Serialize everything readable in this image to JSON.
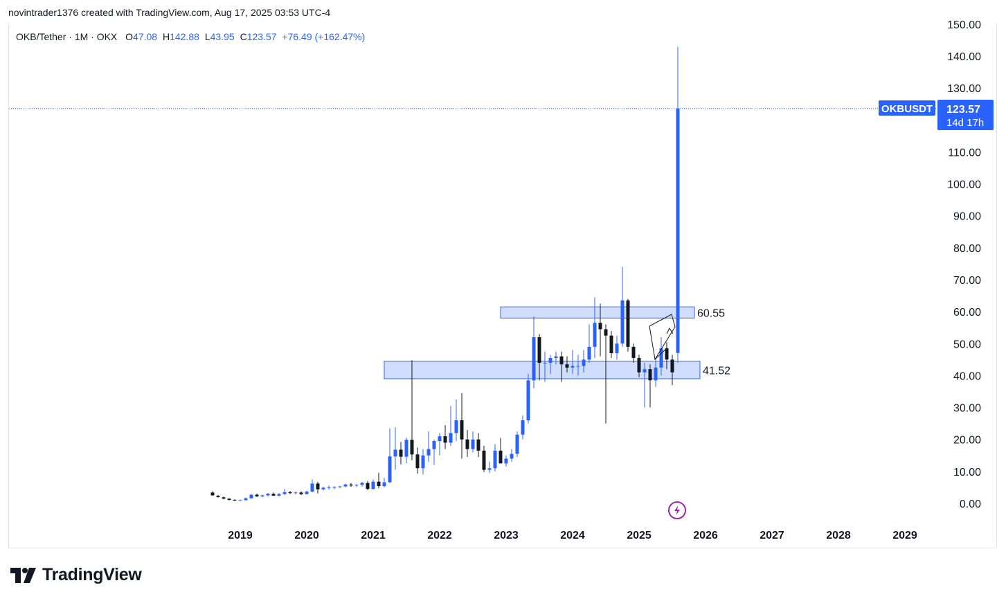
{
  "header": {
    "attribution": "novintrader1376 created with TradingView.com, Aug 17, 2025 03:53 UTC-4"
  },
  "legend": {
    "symbol": "OKB/Tether · 1M · OKX",
    "o_label": "O",
    "o_value": "47.08",
    "h_label": "H",
    "h_value": "142.88",
    "l_label": "L",
    "l_value": "43.95",
    "c_label": "C",
    "c_value": "123.57",
    "change": "+76.49 (+162.47%)"
  },
  "price_tag": {
    "symbol": "OKBUSDT",
    "price": "123.57",
    "countdown": "14d 17h"
  },
  "levels": {
    "upper": "60.55",
    "lower": "41.52"
  },
  "footer": {
    "brand": "TradingView"
  },
  "colors": {
    "up": "#2962ff",
    "down": "#131722",
    "zone_fill": "#c9d7fb",
    "zone_stroke": "#2962ff",
    "priceline": "#2962ff"
  },
  "chart_data": {
    "type": "candlestick",
    "interval": "1M",
    "y_axis": {
      "ticks": [
        0,
        10,
        20,
        30,
        40,
        50,
        60,
        70,
        80,
        90,
        100,
        110,
        120,
        130,
        140,
        150
      ],
      "tick_labels": [
        "0.00",
        "10.00",
        "20.00",
        "30.00",
        "40.00",
        "50.00",
        "60.00",
        "70.00",
        "80.00",
        "90.00",
        "100.00",
        "110.00",
        "120.00",
        "130.00",
        "140.00",
        "150.00"
      ],
      "range": [
        0,
        150
      ]
    },
    "x_axis": {
      "tick_labels": [
        "2019",
        "2020",
        "2021",
        "2022",
        "2023",
        "2024",
        "2025",
        "2026",
        "2027",
        "2028",
        "2029"
      ],
      "range": [
        "2018-06",
        "2029-12"
      ]
    },
    "zones": [
      {
        "label": "60.55",
        "low": 58.0,
        "high": 61.5,
        "start": "2023-01",
        "end": "2025-10"
      },
      {
        "label": "41.52",
        "low": 39.0,
        "high": 44.5,
        "start": "2021-04",
        "end": "2025-11"
      }
    ],
    "candles": [
      {
        "t": "2018-08",
        "o": 3.4,
        "h": 3.8,
        "l": 2.4,
        "c": 2.5
      },
      {
        "t": "2018-09",
        "o": 2.4,
        "h": 2.6,
        "l": 1.8,
        "c": 2.0
      },
      {
        "t": "2018-10",
        "o": 1.9,
        "h": 2.1,
        "l": 1.3,
        "c": 1.5
      },
      {
        "t": "2018-11",
        "o": 1.5,
        "h": 1.6,
        "l": 0.9,
        "c": 1.1
      },
      {
        "t": "2018-12",
        "o": 1.1,
        "h": 1.3,
        "l": 0.8,
        "c": 1.0
      },
      {
        "t": "2019-01",
        "o": 1.0,
        "h": 1.2,
        "l": 0.8,
        "c": 1.0
      },
      {
        "t": "2019-02",
        "o": 1.0,
        "h": 1.8,
        "l": 0.9,
        "c": 1.6
      },
      {
        "t": "2019-03",
        "o": 1.6,
        "h": 2.9,
        "l": 1.4,
        "c": 2.7
      },
      {
        "t": "2019-04",
        "o": 2.7,
        "h": 3.1,
        "l": 2.0,
        "c": 2.2
      },
      {
        "t": "2019-05",
        "o": 2.2,
        "h": 2.8,
        "l": 1.9,
        "c": 2.5
      },
      {
        "t": "2019-06",
        "o": 2.5,
        "h": 3.3,
        "l": 2.2,
        "c": 3.0
      },
      {
        "t": "2019-07",
        "o": 3.0,
        "h": 3.4,
        "l": 2.3,
        "c": 2.4
      },
      {
        "t": "2019-08",
        "o": 2.4,
        "h": 3.2,
        "l": 2.2,
        "c": 2.9
      },
      {
        "t": "2019-09",
        "o": 2.9,
        "h": 4.5,
        "l": 2.7,
        "c": 3.5
      },
      {
        "t": "2019-10",
        "o": 3.5,
        "h": 3.9,
        "l": 2.9,
        "c": 3.2
      },
      {
        "t": "2019-11",
        "o": 3.2,
        "h": 3.7,
        "l": 2.8,
        "c": 3.4
      },
      {
        "t": "2019-12",
        "o": 3.4,
        "h": 3.8,
        "l": 2.6,
        "c": 2.9
      },
      {
        "t": "2020-01",
        "o": 2.9,
        "h": 3.9,
        "l": 2.8,
        "c": 3.7
      },
      {
        "t": "2020-02",
        "o": 3.7,
        "h": 7.5,
        "l": 3.5,
        "c": 6.2
      },
      {
        "t": "2020-03",
        "o": 6.2,
        "h": 6.8,
        "l": 3.1,
        "c": 4.4
      },
      {
        "t": "2020-04",
        "o": 4.4,
        "h": 5.2,
        "l": 4.0,
        "c": 4.9
      },
      {
        "t": "2020-05",
        "o": 4.9,
        "h": 5.6,
        "l": 4.3,
        "c": 5.0
      },
      {
        "t": "2020-06",
        "o": 5.0,
        "h": 5.4,
        "l": 4.5,
        "c": 5.1
      },
      {
        "t": "2020-07",
        "o": 5.1,
        "h": 5.5,
        "l": 4.8,
        "c": 5.3
      },
      {
        "t": "2020-08",
        "o": 5.3,
        "h": 6.2,
        "l": 5.0,
        "c": 5.9
      },
      {
        "t": "2020-09",
        "o": 5.9,
        "h": 6.4,
        "l": 5.2,
        "c": 5.6
      },
      {
        "t": "2020-10",
        "o": 5.6,
        "h": 6.0,
        "l": 5.1,
        "c": 5.8
      },
      {
        "t": "2020-11",
        "o": 5.8,
        "h": 6.8,
        "l": 5.2,
        "c": 6.4
      },
      {
        "t": "2020-12",
        "o": 6.4,
        "h": 7.0,
        "l": 4.2,
        "c": 4.5
      },
      {
        "t": "2021-01",
        "o": 4.5,
        "h": 7.5,
        "l": 4.4,
        "c": 6.8
      },
      {
        "t": "2021-02",
        "o": 6.8,
        "h": 9.6,
        "l": 4.7,
        "c": 5.4
      },
      {
        "t": "2021-03",
        "o": 5.4,
        "h": 8.0,
        "l": 5.0,
        "c": 6.6
      },
      {
        "t": "2021-04",
        "o": 6.6,
        "h": 23.5,
        "l": 6.4,
        "c": 14.7
      },
      {
        "t": "2021-05",
        "o": 14.7,
        "h": 23.8,
        "l": 10.5,
        "c": 16.8
      },
      {
        "t": "2021-06",
        "o": 16.8,
        "h": 19.2,
        "l": 12.2,
        "c": 14.6
      },
      {
        "t": "2021-07",
        "o": 14.6,
        "h": 20.6,
        "l": 12.5,
        "c": 19.9
      },
      {
        "t": "2021-08",
        "o": 19.9,
        "h": 44.8,
        "l": 13.5,
        "c": 15.3
      },
      {
        "t": "2021-09",
        "o": 15.3,
        "h": 17.5,
        "l": 9.3,
        "c": 11.0
      },
      {
        "t": "2021-10",
        "o": 11.0,
        "h": 17.0,
        "l": 9.0,
        "c": 15.0
      },
      {
        "t": "2021-11",
        "o": 15.0,
        "h": 22.5,
        "l": 13.0,
        "c": 17.0
      },
      {
        "t": "2021-12",
        "o": 17.0,
        "h": 20.0,
        "l": 12.0,
        "c": 19.5
      },
      {
        "t": "2022-01",
        "o": 19.5,
        "h": 22.0,
        "l": 15.0,
        "c": 21.0
      },
      {
        "t": "2022-02",
        "o": 21.0,
        "h": 24.5,
        "l": 17.0,
        "c": 19.0
      },
      {
        "t": "2022-03",
        "o": 19.0,
        "h": 30.5,
        "l": 18.0,
        "c": 22.0
      },
      {
        "t": "2022-04",
        "o": 22.0,
        "h": 32.5,
        "l": 19.5,
        "c": 26.0
      },
      {
        "t": "2022-05",
        "o": 26.0,
        "h": 34.5,
        "l": 14.0,
        "c": 20.0
      },
      {
        "t": "2022-06",
        "o": 20.0,
        "h": 23.0,
        "l": 14.5,
        "c": 17.0
      },
      {
        "t": "2022-07",
        "o": 17.0,
        "h": 22.5,
        "l": 16.0,
        "c": 20.0
      },
      {
        "t": "2022-08",
        "o": 20.0,
        "h": 22.0,
        "l": 14.5,
        "c": 16.5
      },
      {
        "t": "2022-09",
        "o": 16.5,
        "h": 18.0,
        "l": 9.8,
        "c": 10.5
      },
      {
        "t": "2022-10",
        "o": 10.5,
        "h": 13.0,
        "l": 9.5,
        "c": 11.0
      },
      {
        "t": "2022-11",
        "o": 11.0,
        "h": 18.5,
        "l": 10.0,
        "c": 16.5
      },
      {
        "t": "2022-12",
        "o": 16.5,
        "h": 20.5,
        "l": 13.0,
        "c": 12.5
      },
      {
        "t": "2023-01",
        "o": 12.5,
        "h": 15.0,
        "l": 11.5,
        "c": 14.0
      },
      {
        "t": "2023-02",
        "o": 14.0,
        "h": 17.0,
        "l": 13.0,
        "c": 15.5
      },
      {
        "t": "2023-03",
        "o": 15.5,
        "h": 22.5,
        "l": 14.5,
        "c": 21.5
      },
      {
        "t": "2023-04",
        "o": 21.5,
        "h": 27.5,
        "l": 20.0,
        "c": 26.0
      },
      {
        "t": "2023-05",
        "o": 26.0,
        "h": 40.5,
        "l": 25.0,
        "c": 38.5
      },
      {
        "t": "2023-06",
        "o": 38.5,
        "h": 58.5,
        "l": 36.0,
        "c": 52.0
      },
      {
        "t": "2023-07",
        "o": 52.0,
        "h": 53.0,
        "l": 38.5,
        "c": 44.0
      },
      {
        "t": "2023-08",
        "o": 44.0,
        "h": 47.5,
        "l": 38.0,
        "c": 44.0
      },
      {
        "t": "2023-09",
        "o": 44.0,
        "h": 46.5,
        "l": 40.5,
        "c": 45.5
      },
      {
        "t": "2023-10",
        "o": 45.5,
        "h": 47.5,
        "l": 43.5,
        "c": 46.0
      },
      {
        "t": "2023-11",
        "o": 46.0,
        "h": 47.5,
        "l": 38.0,
        "c": 43.5
      },
      {
        "t": "2023-12",
        "o": 43.5,
        "h": 46.0,
        "l": 41.0,
        "c": 42.5
      },
      {
        "t": "2024-01",
        "o": 42.5,
        "h": 48.0,
        "l": 40.5,
        "c": 43.0
      },
      {
        "t": "2024-02",
        "o": 43.0,
        "h": 46.5,
        "l": 40.0,
        "c": 43.0
      },
      {
        "t": "2024-03",
        "o": 43.0,
        "h": 48.0,
        "l": 41.0,
        "c": 45.0
      },
      {
        "t": "2024-04",
        "o": 45.0,
        "h": 56.0,
        "l": 44.0,
        "c": 49.0
      },
      {
        "t": "2024-05",
        "o": 49.0,
        "h": 64.5,
        "l": 45.5,
        "c": 56.5
      },
      {
        "t": "2024-06",
        "o": 56.5,
        "h": 62.5,
        "l": 46.0,
        "c": 54.5
      },
      {
        "t": "2024-07",
        "o": 54.5,
        "h": 56.0,
        "l": 25.0,
        "c": 52.5
      },
      {
        "t": "2024-08",
        "o": 52.5,
        "h": 54.0,
        "l": 45.5,
        "c": 47.0
      },
      {
        "t": "2024-09",
        "o": 47.0,
        "h": 52.5,
        "l": 45.0,
        "c": 50.0
      },
      {
        "t": "2024-10",
        "o": 50.0,
        "h": 74.0,
        "l": 49.0,
        "c": 63.5
      },
      {
        "t": "2024-11",
        "o": 63.5,
        "h": 64.0,
        "l": 47.5,
        "c": 49.0
      },
      {
        "t": "2024-12",
        "o": 49.0,
        "h": 50.0,
        "l": 44.0,
        "c": 45.5
      }
    ],
    "candles_2025": [
      {
        "t": "2025-01",
        "o": 45.5,
        "h": 46.5,
        "l": 39.5,
        "c": 41.0
      },
      {
        "t": "2025-02",
        "o": 41.0,
        "h": 44.0,
        "l": 30.0,
        "c": 42.0
      },
      {
        "t": "2025-03",
        "o": 42.0,
        "h": 43.5,
        "l": 30.0,
        "c": 38.5
      },
      {
        "t": "2025-04",
        "o": 38.5,
        "h": 45.5,
        "l": 36.5,
        "c": 42.5
      },
      {
        "t": "2025-05",
        "o": 42.5,
        "h": 52.0,
        "l": 40.0,
        "c": 48.5
      },
      {
        "t": "2025-06",
        "o": 48.5,
        "h": 50.5,
        "l": 42.0,
        "c": 45.0
      },
      {
        "t": "2025-07",
        "o": 45.0,
        "h": 46.5,
        "l": 37.0,
        "c": 41.0
      },
      {
        "t": "2025-08",
        "o": 47.08,
        "h": 142.88,
        "l": 43.95,
        "c": 123.57
      }
    ]
  }
}
